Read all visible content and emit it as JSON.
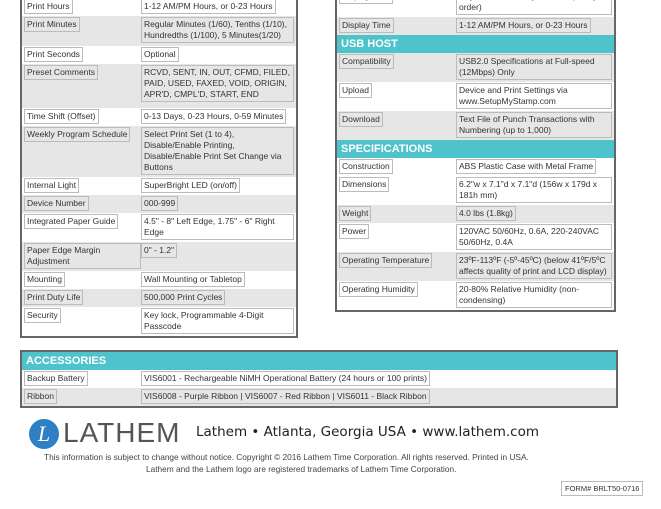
{
  "left_table": [
    {
      "label": "Print Hours",
      "value": "1-12 AM/PM Hours, or 0-23 Hours"
    },
    {
      "label": "Print Minutes",
      "value": "Regular Minutes (1/60), Tenths (1/10), Hundredths (1/100),  5 Minutes(1/20)"
    },
    {
      "label": "Print Seconds",
      "value": "Optional"
    },
    {
      "label": "Preset Comments",
      "value": "RCVD, SENT, IN, OUT, CFMD, FILED, PAID, USED, FAXED, VOID, ORIGIN, APR'D, CMPL'D, START, END"
    },
    {
      "label": "Time Shift (Offset)",
      "value": "0-13 Days, 0-23 Hours, 0-59 Minutes"
    },
    {
      "label": "Weekly Program Schedule",
      "value": "Select Print Set (1 to 4), Disable/Enable Printing, Disable/Enable Print Set Change via Buttons"
    },
    {
      "label": "Internal Light",
      "value": "SuperBright LED (on/off)"
    },
    {
      "label": "Device Number",
      "value": "000-999"
    },
    {
      "label": "Integrated Paper Guide",
      "value": "4.5\" - 8\" Left Edge, 1.75\" - 6\" Right Edge"
    },
    {
      "label": "Paper Edge Margin Adjustment",
      "value": "0\" - 1.2\""
    },
    {
      "label": "Mounting",
      "value": "Wall Mounting or Tabletop"
    },
    {
      "label": "Print Duty Life",
      "value": "500,000 Print Cycles"
    },
    {
      "label": "Security",
      "value": "Key lock, Programmable 4-Digit Passcode"
    }
  ],
  "right_top": [
    {
      "label": "Display Date",
      "value": "Day, Month and Day of Week (in any order)"
    },
    {
      "label": "Display Time",
      "value": "1-12 AM/PM Hours, or 0-23 Hours"
    }
  ],
  "usb": {
    "title": "USB HOST",
    "rows": [
      {
        "label": "Compatibility",
        "value": "USB2.0 Specifications at Full-speed (12Mbps) Only"
      },
      {
        "label": "Upload",
        "value": "Device and Print Settings via www.SetupMyStamp.com"
      },
      {
        "label": "Download",
        "value": "Text File of Punch Transactions with Numbering (up to 1,000)"
      }
    ]
  },
  "specs": {
    "title": "SPECIFICATIONS",
    "rows": [
      {
        "label": "Construction",
        "value": "ABS Plastic Case with Metal Frame"
      },
      {
        "label": "Dimensions",
        "value": "6.2\"w x 7.1\"d x 7.1\"d (156w x 179d x 181h mm)"
      },
      {
        "label": "Weight",
        "value": "4.0 lbs (1.8kg)"
      },
      {
        "label": "Power",
        "value": "120VAC 50/60Hz, 0.6A, 220-240VAC 50/60Hz, 0.4A"
      },
      {
        "label": "Operating Temperature",
        "value": "23ºF-113ºF (-5º-45ºC) (below 41ºF/5ºC affects quality of print and LCD display)"
      },
      {
        "label": "Operating Humidity",
        "value": "20-80% Relative Humidity (non-condensing)"
      }
    ]
  },
  "accessories": {
    "title": "ACCESSORIES",
    "rows": [
      {
        "label": "Backup Battery",
        "value": "VIS6001 - Rechargeable NiMH Operational Battery (24 hours or 100 prints)"
      },
      {
        "label": "Ribbon",
        "value": "VIS6008 - Purple Ribbon  |  VIS6007 - Red Ribbon  |  VIS6011 - Black Ribbon"
      }
    ]
  },
  "footer": {
    "logo_text": "LATHEM",
    "logo_letter": "L",
    "address": "Lathem  •  Atlanta, Georgia USA  •  www.lathem.com",
    "notice": "This information is subject to change without notice.  Copyright © 2016 Lathem Time Corporation.  All rights reserved.  Printed in USA.",
    "trademark": "Lathem and the Lathem logo are registered trademarks of Lathem Time Corporation.",
    "form": "FORM# BRLT50-0716"
  },
  "colors": {
    "accent": "#4fc3cb",
    "row_alt": "#e6e6e6",
    "logo_blue": "#2f7fc4"
  }
}
